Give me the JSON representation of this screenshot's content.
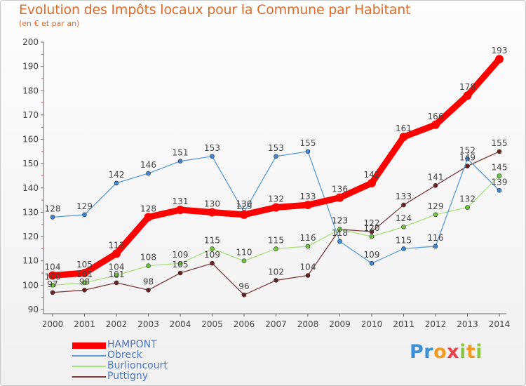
{
  "title": "Evolution des Impôts locaux pour la Commune par Habitant",
  "subtitle": "(en € et par an)",
  "logo": {
    "text": "Proxiti"
  },
  "chart_data": {
    "type": "line",
    "x": [
      "2000",
      "2001",
      "2002",
      "2003",
      "2004",
      "2005",
      "2006",
      "2007",
      "2008",
      "2009",
      "2010",
      "2011",
      "2012",
      "2013",
      "2014"
    ],
    "ylim": [
      90,
      200
    ],
    "yticks": [
      90,
      100,
      110,
      120,
      130,
      140,
      150,
      160,
      170,
      180,
      190,
      200
    ],
    "grid": false,
    "legend_position": "bottom-left",
    "series": [
      {
        "name": "HAMPONT",
        "color": "#ff0000",
        "width": 9,
        "marker_color": "#ff0000",
        "values": [
          104,
          105,
          113,
          128,
          131,
          130,
          129,
          132,
          133,
          136,
          142,
          161,
          166,
          178,
          193
        ]
      },
      {
        "name": "Obreck",
        "color": "#5b9bd5",
        "width": 1.3,
        "marker_color": "#3b86d6",
        "values": [
          128,
          129,
          142,
          146,
          151,
          153,
          130,
          153,
          155,
          118,
          109,
          115,
          116,
          152,
          139
        ]
      },
      {
        "name": "Burlioncourt",
        "color": "#a6e07a",
        "width": 1.3,
        "marker_color": "#6cc43a",
        "values": [
          100,
          101,
          104,
          108,
          109,
          115,
          110,
          115,
          116,
          123,
          120,
          124,
          129,
          132,
          145
        ]
      },
      {
        "name": "Puttigny",
        "color": "#7a3b3b",
        "width": 1.3,
        "marker_color": "#6b1f1f",
        "values": [
          97,
          98,
          101,
          98,
          105,
          109,
          96,
          102,
          104,
          123,
          122,
          133,
          141,
          149,
          155
        ]
      }
    ]
  }
}
